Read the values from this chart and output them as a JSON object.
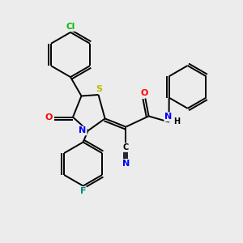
{
  "background_color": "#ececec",
  "atom_colors": {
    "Cl": "#00bb00",
    "S": "#bbbb00",
    "N": "#0000ff",
    "O": "#ff0000",
    "F": "#008888",
    "C": "#000000",
    "H": "#000000"
  },
  "bond_color": "#000000",
  "bond_width": 1.4,
  "fig_size": [
    3.0,
    3.0
  ],
  "dpi": 100,
  "xlim": [
    0,
    10
  ],
  "ylim": [
    0,
    10
  ]
}
